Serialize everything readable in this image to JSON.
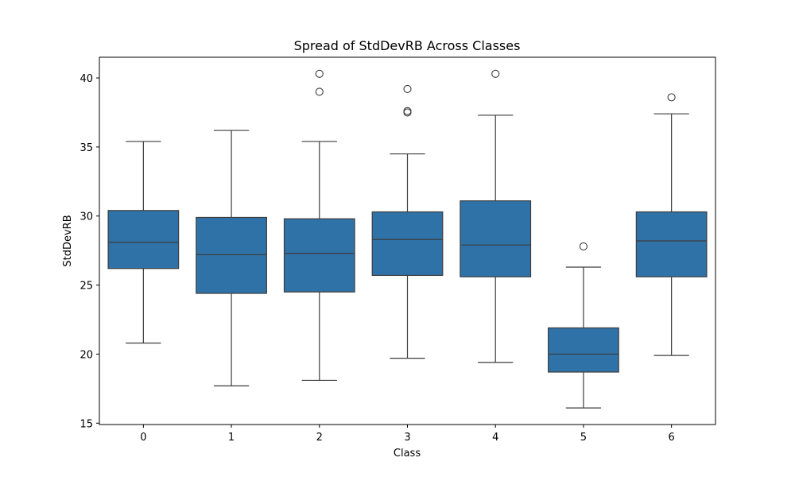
{
  "chart_data": {
    "type": "box",
    "title": "Spread of StdDevRB Across Classes",
    "xlabel": "Class",
    "ylabel": "StdDevRB",
    "ylim": [
      14.9,
      41.5
    ],
    "yticks": [
      15,
      20,
      25,
      30,
      35,
      40
    ],
    "grid": false,
    "box_color": "#2f72a8",
    "categories": [
      "0",
      "1",
      "2",
      "3",
      "4",
      "5",
      "6"
    ],
    "boxes": [
      {
        "class": "0",
        "whisker_low": 20.8,
        "q1": 26.2,
        "median": 28.1,
        "q3": 30.4,
        "whisker_high": 35.4,
        "outliers": []
      },
      {
        "class": "1",
        "whisker_low": 17.7,
        "q1": 24.4,
        "median": 27.2,
        "q3": 29.9,
        "whisker_high": 36.2,
        "outliers": []
      },
      {
        "class": "2",
        "whisker_low": 18.1,
        "q1": 24.5,
        "median": 27.3,
        "q3": 29.8,
        "whisker_high": 35.4,
        "outliers": [
          39.0,
          40.3
        ]
      },
      {
        "class": "3",
        "whisker_low": 19.7,
        "q1": 25.7,
        "median": 28.3,
        "q3": 30.3,
        "whisker_high": 34.5,
        "outliers": [
          37.5,
          37.6,
          39.2
        ]
      },
      {
        "class": "4",
        "whisker_low": 19.4,
        "q1": 25.6,
        "median": 27.9,
        "q3": 31.1,
        "whisker_high": 37.3,
        "outliers": [
          40.3
        ]
      },
      {
        "class": "5",
        "whisker_low": 16.1,
        "q1": 18.7,
        "median": 20.0,
        "q3": 21.9,
        "whisker_high": 26.3,
        "outliers": [
          27.8
        ]
      },
      {
        "class": "6",
        "whisker_low": 19.9,
        "q1": 25.6,
        "median": 28.2,
        "q3": 30.3,
        "whisker_high": 37.4,
        "outliers": [
          38.6
        ]
      }
    ]
  }
}
